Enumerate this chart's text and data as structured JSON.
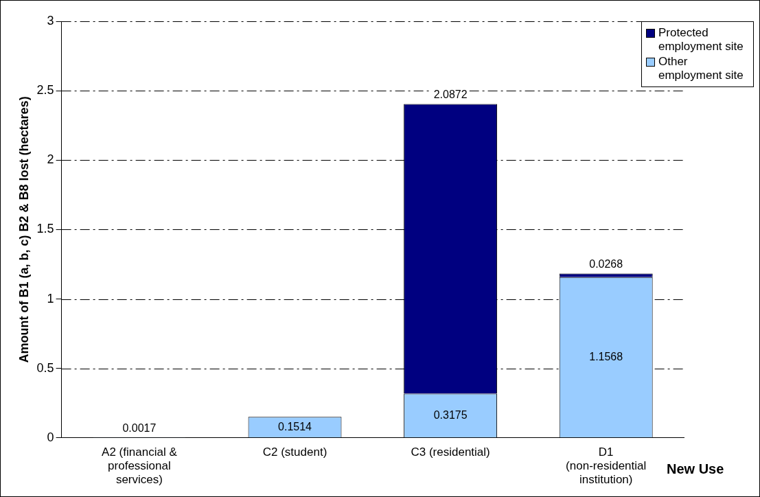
{
  "chart_data": {
    "type": "bar",
    "stacked": true,
    "xlabel": "New Use",
    "ylabel": "Amount of B1 (a, b, c) B2 & B8 lost (hectares)",
    "categories": [
      "A2 (financial & professional services)",
      "C2 (student)",
      "C3 (residential)",
      "D1 (non-residential institution)"
    ],
    "series": [
      {
        "name": "Other employment site",
        "color": "#99ccff",
        "values": [
          0.0017,
          0.1514,
          0.3175,
          1.1568
        ],
        "value_labels": [
          "0.0017",
          "0.1514",
          "0.3175",
          "1.1568"
        ]
      },
      {
        "name": "Protected employment site",
        "color": "#000080",
        "values": [
          null,
          null,
          2.0872,
          0.0268
        ],
        "value_labels": [
          null,
          null,
          "2.0872",
          "0.0268"
        ]
      }
    ],
    "ylim": [
      0,
      3
    ],
    "yticks": [
      0,
      0.5,
      1,
      1.5,
      2,
      2.5,
      3
    ],
    "grid": "y",
    "legend": "right"
  }
}
